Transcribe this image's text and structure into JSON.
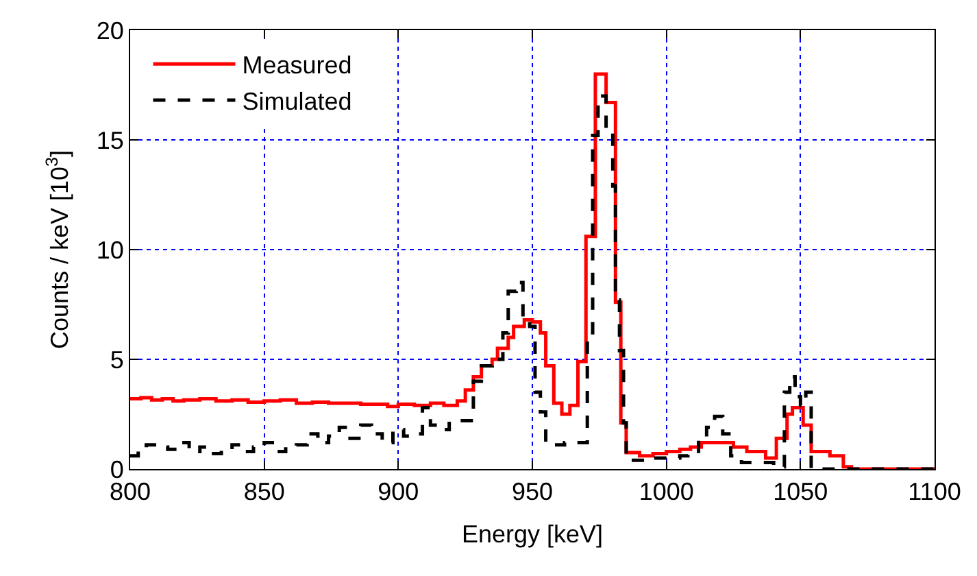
{
  "chart_data": {
    "type": "step",
    "xlabel": "Energy [keV]",
    "ylabel": "Counts / keV [10$^{3}$]",
    "xlim": [
      800,
      1100
    ],
    "ylim": [
      0,
      20
    ],
    "xticks": [
      800,
      850,
      900,
      950,
      1000,
      1050,
      1100
    ],
    "yticks": [
      0,
      5,
      10,
      15,
      20
    ],
    "grid": true,
    "legend": "top left",
    "series": [
      {
        "name": "Measured",
        "color": "#ff0000",
        "line_style": "solid",
        "x": [
          800,
          804,
          808,
          812,
          816,
          820,
          826,
          832,
          838,
          844,
          850,
          856,
          862,
          868,
          874,
          880,
          886,
          892,
          896,
          900,
          906,
          912,
          917,
          922,
          925,
          928,
          931,
          935,
          937,
          941,
          943,
          947,
          950,
          953,
          955,
          958,
          961,
          964,
          967,
          970,
          973.5,
          977.5,
          981,
          983,
          985,
          990,
          995,
          1000,
          1005,
          1009,
          1013,
          1025,
          1030,
          1037,
          1041,
          1045,
          1047,
          1051,
          1054,
          1061,
          1066,
          1069,
          1100
        ],
        "values": [
          3.2,
          3.25,
          3.15,
          3.2,
          3.1,
          3.15,
          3.2,
          3.1,
          3.15,
          3.05,
          3.1,
          3.15,
          3.0,
          3.05,
          3.0,
          3.0,
          2.95,
          2.95,
          2.85,
          2.95,
          2.9,
          3.0,
          2.9,
          3.1,
          3.6,
          4.2,
          4.7,
          5.0,
          5.5,
          6.0,
          6.5,
          6.8,
          6.7,
          6.2,
          4.7,
          3.0,
          2.5,
          2.9,
          4.9,
          10.6,
          18.0,
          16.7,
          7.6,
          2.1,
          0.75,
          0.6,
          0.7,
          0.8,
          0.9,
          1.0,
          1.2,
          1.0,
          0.8,
          0.5,
          1.4,
          2.5,
          2.8,
          2.0,
          0.8,
          0.6,
          0.1,
          0.0,
          0.0
        ]
      },
      {
        "name": "Simulated",
        "color": "#000000",
        "line_style": "dashed",
        "x": [
          800,
          803,
          806,
          810,
          814,
          818,
          822,
          826,
          830,
          834,
          838,
          842,
          846,
          850,
          854,
          858,
          862,
          866,
          870,
          874,
          878,
          882,
          886,
          890,
          894,
          898,
          902,
          906,
          909,
          912,
          916,
          919,
          928,
          931,
          935,
          939,
          941,
          944,
          946.5,
          949,
          951,
          953,
          955,
          962,
          970.5,
          972.5,
          974.5,
          977.5,
          980,
          981,
          982.5,
          984,
          985,
          995,
          1005,
          1008,
          1012,
          1015,
          1018,
          1021,
          1024,
          1028,
          1040,
          1044,
          1046,
          1048,
          1050,
          1052,
          1054,
          1100
        ],
        "values": [
          0.6,
          0.9,
          1.1,
          1.0,
          0.9,
          1.2,
          0.8,
          1.0,
          0.7,
          0.9,
          1.1,
          0.8,
          1.0,
          1.2,
          0.8,
          1.0,
          1.1,
          1.6,
          1.2,
          1.5,
          1.9,
          1.4,
          2.0,
          1.6,
          1.2,
          1.8,
          1.5,
          1.6,
          2.8,
          2.0,
          1.8,
          2.2,
          4.0,
          4.7,
          5.0,
          6.2,
          8.1,
          8.5,
          6.8,
          6.5,
          3.5,
          2.6,
          1.1,
          1.2,
          5.9,
          15.2,
          17.0,
          15.3,
          12.9,
          7.7,
          5.4,
          2.1,
          0.4,
          0.5,
          0.6,
          0.7,
          1.4,
          1.9,
          2.4,
          1.6,
          0.6,
          0.3,
          0.1,
          3.5,
          4.2,
          3.3,
          2.9,
          3.5,
          0.0,
          0.0
        ]
      }
    ]
  }
}
